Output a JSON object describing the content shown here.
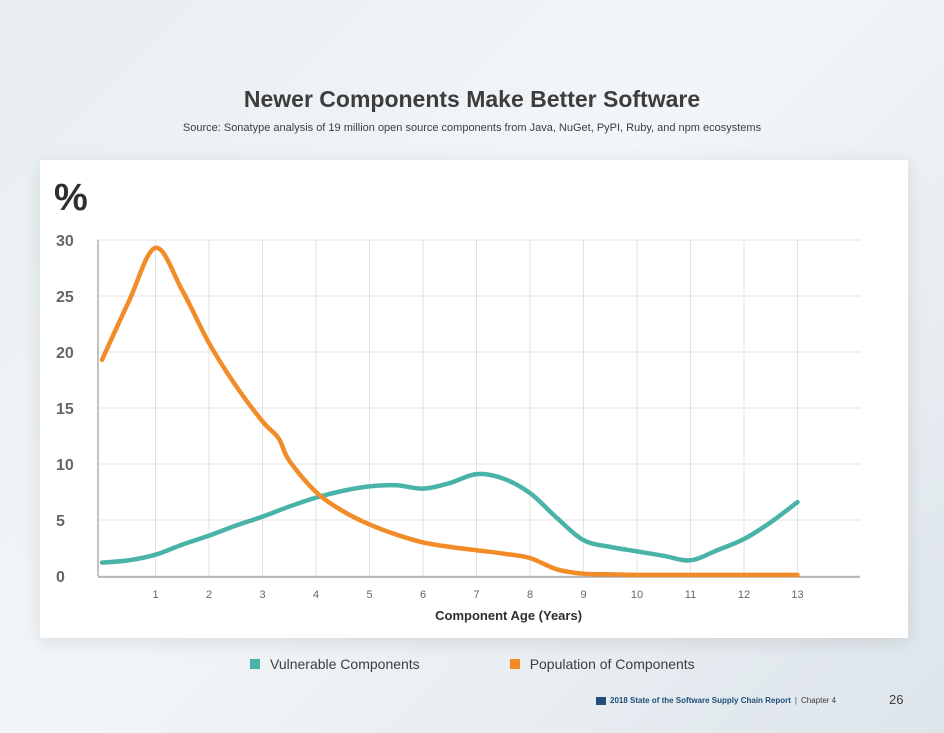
{
  "header": {
    "title": "Newer Components Make Better Software",
    "subtitle": "Source: Sonatype analysis of 19 million open source components from Java, NuGet, PyPI, Ruby, and npm ecosystems"
  },
  "legend": {
    "items": [
      {
        "label": "Vulnerable Components",
        "color": "#4ab3a8"
      },
      {
        "label": "Population of Components",
        "color": "#f28c28"
      }
    ]
  },
  "footer": {
    "report": "2018 State of the Software Supply Chain Report",
    "separator": "|",
    "chapter": "Chapter 4",
    "page": "26"
  },
  "chart_data": {
    "type": "line",
    "title": "Newer Components Make Better Software",
    "ylabel": "%",
    "xlabel": "Component Age (Years)",
    "ylim": [
      0,
      30
    ],
    "xlim": [
      0,
      14
    ],
    "x_ticks": [
      "1",
      "2",
      "3",
      "4",
      "5",
      "6",
      "7",
      "8",
      "9",
      "10",
      "11",
      "12",
      "13"
    ],
    "y_ticks": [
      "0",
      "5",
      "10",
      "15",
      "20",
      "25",
      "30"
    ],
    "grid": true,
    "series": [
      {
        "name": "Vulnerable Components",
        "color": "#4ab3a8",
        "x": [
          0,
          0.5,
          1,
          1.5,
          2,
          2.5,
          3,
          3.5,
          4,
          4.5,
          5,
          5.5,
          6,
          6.5,
          7,
          7.5,
          8,
          8.5,
          9,
          9.5,
          10,
          10.5,
          11,
          11.5,
          12,
          12.5,
          13
        ],
        "y": [
          1.2,
          1.4,
          1.9,
          2.8,
          3.6,
          4.5,
          5.3,
          6.2,
          7.0,
          7.6,
          8.0,
          8.1,
          7.8,
          8.3,
          9.1,
          8.7,
          7.4,
          5.2,
          3.2,
          2.6,
          2.2,
          1.8,
          1.4,
          2.3,
          3.3,
          4.8,
          6.6
        ]
      },
      {
        "name": "Population of Components",
        "color": "#f28c28",
        "x": [
          0,
          0.5,
          1,
          1.5,
          2,
          2.5,
          3,
          3.3,
          3.5,
          4,
          4.5,
          5,
          5.5,
          6,
          6.5,
          7,
          7.5,
          8,
          8.5,
          9,
          9.5,
          10,
          10.5,
          11,
          11.5,
          12,
          12.5,
          13
        ],
        "y": [
          19.3,
          24.5,
          29.3,
          25.5,
          20.8,
          17.0,
          13.8,
          12.3,
          10.3,
          7.5,
          5.8,
          4.6,
          3.7,
          3.0,
          2.6,
          2.3,
          2.0,
          1.6,
          0.6,
          0.2,
          0.15,
          0.1,
          0.1,
          0.1,
          0.1,
          0.1,
          0.1,
          0.1
        ]
      }
    ]
  }
}
